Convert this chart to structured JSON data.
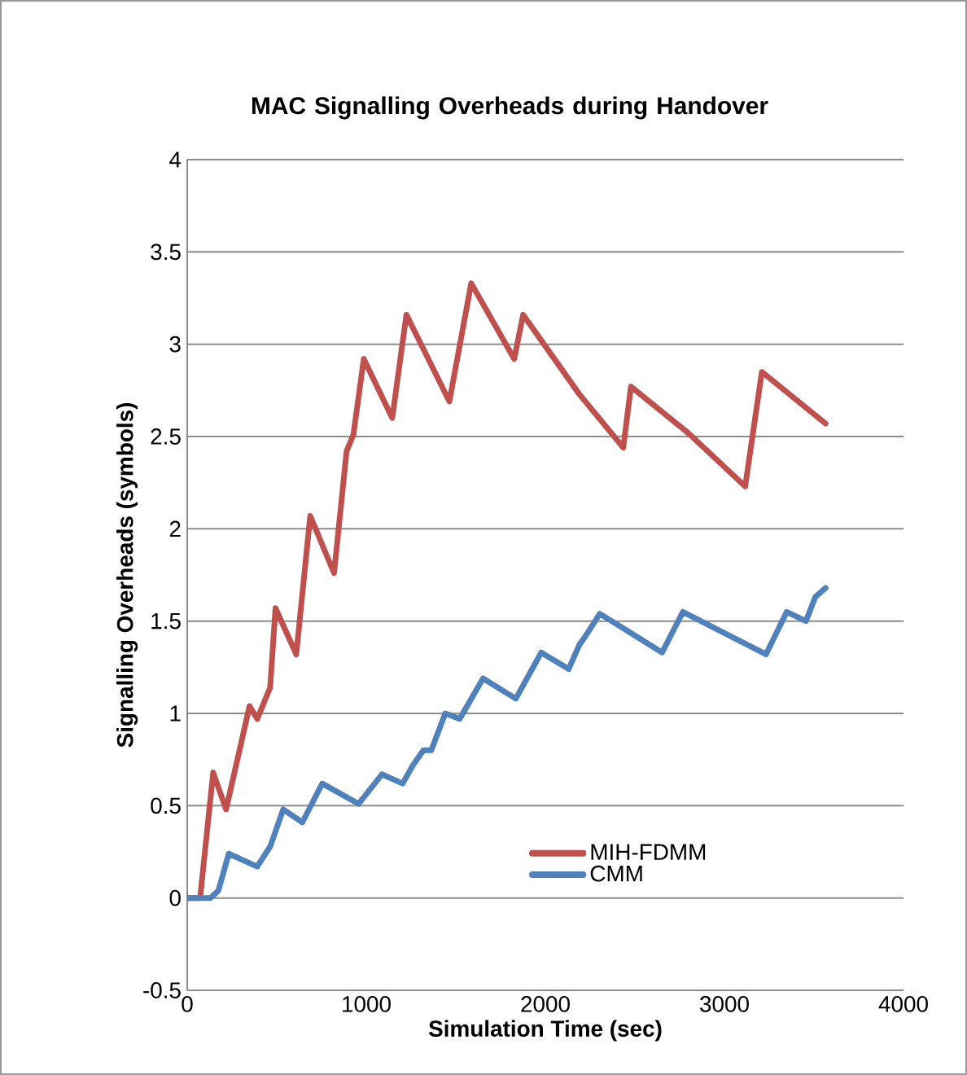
{
  "chart_data": {
    "type": "line",
    "title": "MAC Signalling Overheads during Handover",
    "xlabel": "Simulation Time (sec)",
    "ylabel": "Signalling Overheads (symbols)",
    "xlim": [
      0,
      4000
    ],
    "xticks": [
      0,
      1000,
      2000,
      3000,
      4000
    ],
    "ylim": [
      -0.5,
      4
    ],
    "yticks": [
      -0.5,
      0,
      0.5,
      1,
      1.5,
      2,
      2.5,
      3,
      3.5,
      4
    ],
    "grid": "y",
    "legend": "right",
    "marker": "none",
    "line_style": "solid",
    "series": [
      {
        "name": "MIH-FDMM",
        "color": "#c0504d",
        "x": [
          0,
          72,
          145,
          217,
          348,
          391,
          463,
          493,
          609,
          687,
          820,
          890,
          928,
          986,
          1145,
          1224,
          1464,
          1586,
          1826,
          1876,
          2189,
          2435,
          2478,
          2797,
          3116,
          3209,
          3565
        ],
        "values": [
          0,
          0,
          0.68,
          0.48,
          1.04,
          0.97,
          1.14,
          1.57,
          1.32,
          2.07,
          1.76,
          2.42,
          2.51,
          2.92,
          2.6,
          3.16,
          2.69,
          3.33,
          2.92,
          3.16,
          2.73,
          2.44,
          2.77,
          2.52,
          2.23,
          2.85,
          2.57
        ]
      },
      {
        "name": "CMM",
        "color": "#4f81bd",
        "x": [
          0,
          130,
          174,
          232,
          391,
          464,
          536,
          643,
          754,
          957,
          1087,
          1203,
          1261,
          1319,
          1363,
          1441,
          1522,
          1652,
          1835,
          1977,
          2130,
          2189,
          2218,
          2304,
          2652,
          2768,
          3232,
          3348,
          3455,
          3507,
          3565
        ],
        "values": [
          0,
          0,
          0.04,
          0.24,
          0.17,
          0.28,
          0.48,
          0.41,
          0.62,
          0.51,
          0.67,
          0.62,
          0.72,
          0.8,
          0.8,
          1.0,
          0.97,
          1.19,
          1.08,
          1.33,
          1.24,
          1.37,
          1.41,
          1.54,
          1.33,
          1.55,
          1.32,
          1.55,
          1.5,
          1.63,
          1.68
        ]
      }
    ]
  }
}
